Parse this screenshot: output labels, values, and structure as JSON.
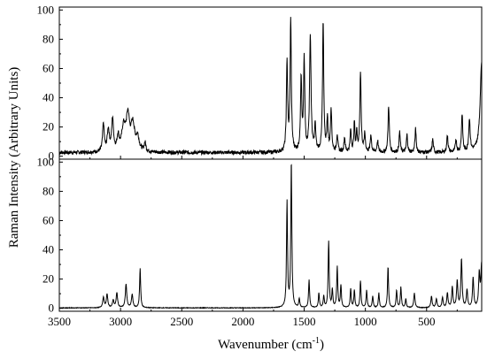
{
  "chart_data": {
    "type": "line",
    "layout": "two stacked panels sharing x-axis",
    "xlabel_main": "Wavenumber (cm",
    "xlabel_sup": "-1",
    "xlabel_end": ")",
    "ylabel": "Raman Intensity (Arbitrary Units)",
    "xlim": [
      3500,
      50
    ],
    "x_reversed": true,
    "x_ticks": [
      3500,
      3000,
      2500,
      2000,
      1500,
      1000,
      500
    ],
    "grid": false,
    "panels": [
      {
        "id": "top",
        "ylim": [
          -2,
          102
        ],
        "y_ticks": [
          0,
          20,
          40,
          60,
          80,
          100
        ],
        "baseline": 2.5,
        "noise": 1.3,
        "peaks": [
          {
            "x": 3140,
            "y": 19,
            "w": 8
          },
          {
            "x": 3100,
            "y": 15,
            "w": 10
          },
          {
            "x": 3065,
            "y": 22,
            "w": 9
          },
          {
            "x": 3020,
            "y": 10,
            "w": 10
          },
          {
            "x": 2975,
            "y": 16,
            "w": 18
          },
          {
            "x": 2940,
            "y": 23,
            "w": 16
          },
          {
            "x": 2900,
            "y": 18,
            "w": 18
          },
          {
            "x": 2860,
            "y": 9,
            "w": 15
          },
          {
            "x": 2800,
            "y": 6,
            "w": 8
          },
          {
            "x": 1640,
            "y": 62,
            "w": 6
          },
          {
            "x": 1610,
            "y": 90,
            "w": 6
          },
          {
            "x": 1525,
            "y": 50,
            "w": 6
          },
          {
            "x": 1500,
            "y": 62,
            "w": 6
          },
          {
            "x": 1450,
            "y": 80,
            "w": 7
          },
          {
            "x": 1410,
            "y": 18,
            "w": 6
          },
          {
            "x": 1345,
            "y": 88,
            "w": 6
          },
          {
            "x": 1310,
            "y": 22,
            "w": 6
          },
          {
            "x": 1280,
            "y": 30,
            "w": 6
          },
          {
            "x": 1230,
            "y": 12,
            "w": 6
          },
          {
            "x": 1170,
            "y": 10,
            "w": 6
          },
          {
            "x": 1120,
            "y": 15,
            "w": 6
          },
          {
            "x": 1090,
            "y": 20,
            "w": 5
          },
          {
            "x": 1070,
            "y": 14,
            "w": 5
          },
          {
            "x": 1040,
            "y": 55,
            "w": 6
          },
          {
            "x": 1005,
            "y": 12,
            "w": 6
          },
          {
            "x": 955,
            "y": 12,
            "w": 6
          },
          {
            "x": 900,
            "y": 8,
            "w": 6
          },
          {
            "x": 810,
            "y": 32,
            "w": 6
          },
          {
            "x": 720,
            "y": 14,
            "w": 6
          },
          {
            "x": 660,
            "y": 12,
            "w": 6
          },
          {
            "x": 590,
            "y": 16,
            "w": 6
          },
          {
            "x": 450,
            "y": 9,
            "w": 6
          },
          {
            "x": 330,
            "y": 12,
            "w": 6
          },
          {
            "x": 260,
            "y": 9,
            "w": 6
          },
          {
            "x": 210,
            "y": 26,
            "w": 6
          },
          {
            "x": 150,
            "y": 22,
            "w": 7
          },
          {
            "x": 50,
            "y": 62,
            "w": 15
          }
        ]
      },
      {
        "id": "bottom",
        "ylim": [
          -2,
          102
        ],
        "y_ticks": [
          0,
          20,
          40,
          60,
          80,
          100
        ],
        "baseline": 0.3,
        "noise": 0.2,
        "peaks": [
          {
            "x": 3140,
            "y": 7,
            "w": 7
          },
          {
            "x": 3110,
            "y": 9,
            "w": 7
          },
          {
            "x": 3060,
            "y": 5,
            "w": 7
          },
          {
            "x": 3030,
            "y": 10,
            "w": 7
          },
          {
            "x": 2955,
            "y": 16,
            "w": 7
          },
          {
            "x": 2905,
            "y": 9,
            "w": 7
          },
          {
            "x": 2840,
            "y": 27,
            "w": 5
          },
          {
            "x": 1640,
            "y": 72,
            "w": 5
          },
          {
            "x": 1605,
            "y": 100,
            "w": 5
          },
          {
            "x": 1540,
            "y": 6,
            "w": 5
          },
          {
            "x": 1460,
            "y": 19,
            "w": 5
          },
          {
            "x": 1380,
            "y": 10,
            "w": 5
          },
          {
            "x": 1340,
            "y": 8,
            "w": 5
          },
          {
            "x": 1300,
            "y": 45,
            "w": 5
          },
          {
            "x": 1270,
            "y": 12,
            "w": 5
          },
          {
            "x": 1230,
            "y": 28,
            "w": 5
          },
          {
            "x": 1200,
            "y": 15,
            "w": 5
          },
          {
            "x": 1120,
            "y": 13,
            "w": 5
          },
          {
            "x": 1090,
            "y": 12,
            "w": 5
          },
          {
            "x": 1040,
            "y": 18,
            "w": 5
          },
          {
            "x": 990,
            "y": 12,
            "w": 5
          },
          {
            "x": 940,
            "y": 8,
            "w": 5
          },
          {
            "x": 890,
            "y": 10,
            "w": 5
          },
          {
            "x": 815,
            "y": 28,
            "w": 5
          },
          {
            "x": 745,
            "y": 12,
            "w": 5
          },
          {
            "x": 710,
            "y": 14,
            "w": 5
          },
          {
            "x": 670,
            "y": 6,
            "w": 5
          },
          {
            "x": 600,
            "y": 10,
            "w": 6
          },
          {
            "x": 460,
            "y": 8,
            "w": 6
          },
          {
            "x": 420,
            "y": 6,
            "w": 6
          },
          {
            "x": 370,
            "y": 7,
            "w": 6
          },
          {
            "x": 330,
            "y": 10,
            "w": 6
          },
          {
            "x": 290,
            "y": 14,
            "w": 6
          },
          {
            "x": 250,
            "y": 18,
            "w": 6
          },
          {
            "x": 215,
            "y": 33,
            "w": 6
          },
          {
            "x": 170,
            "y": 12,
            "w": 6
          },
          {
            "x": 120,
            "y": 20,
            "w": 6
          },
          {
            "x": 70,
            "y": 22,
            "w": 6
          },
          {
            "x": 50,
            "y": 30,
            "w": 8
          }
        ]
      }
    ]
  }
}
